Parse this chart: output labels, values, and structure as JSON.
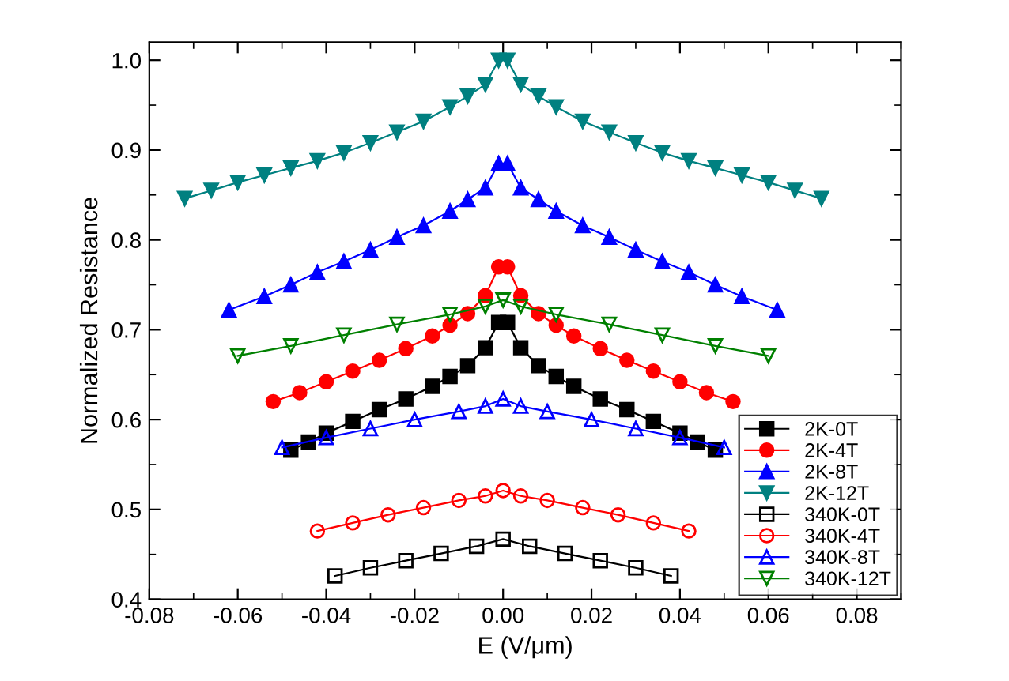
{
  "chart_data": {
    "type": "line",
    "xlabel": "E (V/μm)",
    "ylabel": "Normalized Resistance",
    "xlim": [
      -0.08,
      0.09
    ],
    "xticks": [
      -0.08,
      -0.06,
      -0.04,
      -0.02,
      {
        "value": 0,
        "label": "0.00"
      },
      0.02,
      0.04,
      0.06,
      0.08
    ],
    "ylim": [
      0.4,
      1.02
    ],
    "yticks": [
      0.4,
      0.5,
      0.6,
      0.7,
      0.8,
      0.9,
      {
        "value": 1.0,
        "label": "1.0"
      }
    ],
    "grid": false,
    "legend": "bottom right",
    "line_style": "solid",
    "series": [
      {
        "name": "2K-0T",
        "color": "#000000",
        "marker": "square",
        "x": [
          -0.048,
          -0.044,
          -0.04,
          -0.034,
          -0.028,
          -0.022,
          -0.016,
          -0.012,
          -0.008,
          -0.004,
          -0.001,
          0.001,
          0.004,
          0.008,
          0.012,
          0.016,
          0.022,
          0.028,
          0.034,
          0.04,
          0.044,
          0.048
        ],
        "values": [
          0.566,
          0.575,
          0.585,
          0.598,
          0.611,
          0.623,
          0.637,
          0.648,
          0.66,
          0.68,
          0.708,
          0.708,
          0.68,
          0.66,
          0.648,
          0.637,
          0.623,
          0.611,
          0.598,
          0.585,
          0.575,
          0.566
        ]
      },
      {
        "name": "2K-4T",
        "color": "#ff0000",
        "marker": "circle",
        "x": [
          -0.052,
          -0.046,
          -0.04,
          -0.034,
          -0.028,
          -0.022,
          -0.016,
          -0.012,
          -0.008,
          -0.004,
          -0.001,
          0.001,
          0.004,
          0.008,
          0.012,
          0.016,
          0.022,
          0.028,
          0.034,
          0.04,
          0.046,
          0.052
        ],
        "values": [
          0.62,
          0.63,
          0.642,
          0.654,
          0.666,
          0.679,
          0.693,
          0.705,
          0.718,
          0.738,
          0.77,
          0.77,
          0.738,
          0.718,
          0.705,
          0.693,
          0.679,
          0.666,
          0.654,
          0.642,
          0.63,
          0.62
        ]
      },
      {
        "name": "2K-8T",
        "color": "#0000ff",
        "marker": "triangle",
        "x": [
          -0.062,
          -0.054,
          -0.048,
          -0.042,
          -0.036,
          -0.03,
          -0.024,
          -0.018,
          -0.012,
          -0.008,
          -0.004,
          -0.001,
          0.001,
          0.004,
          0.008,
          0.012,
          0.018,
          0.024,
          0.03,
          0.036,
          0.042,
          0.048,
          0.054,
          0.062
        ],
        "values": [
          0.722,
          0.737,
          0.75,
          0.764,
          0.776,
          0.789,
          0.803,
          0.816,
          0.832,
          0.845,
          0.858,
          0.885,
          0.885,
          0.858,
          0.845,
          0.832,
          0.816,
          0.803,
          0.789,
          0.776,
          0.764,
          0.75,
          0.737,
          0.722
        ]
      },
      {
        "name": "2K-12T",
        "color": "#008080",
        "marker": "triangle_down",
        "x": [
          -0.072,
          -0.066,
          -0.06,
          -0.054,
          -0.048,
          -0.042,
          -0.036,
          -0.03,
          -0.024,
          -0.018,
          -0.012,
          -0.008,
          -0.004,
          -0.001,
          0.001,
          0.004,
          0.008,
          0.012,
          0.018,
          0.024,
          0.03,
          0.036,
          0.042,
          0.048,
          0.054,
          0.06,
          0.066,
          0.072
        ],
        "values": [
          0.846,
          0.855,
          0.864,
          0.872,
          0.88,
          0.888,
          0.897,
          0.908,
          0.92,
          0.932,
          0.948,
          0.96,
          0.973,
          1.0,
          1.0,
          0.973,
          0.96,
          0.948,
          0.932,
          0.92,
          0.908,
          0.897,
          0.888,
          0.88,
          0.872,
          0.864,
          0.855,
          0.846
        ]
      },
      {
        "name": "340K-0T",
        "color": "#000000",
        "marker": "square_open",
        "x": [
          -0.038,
          -0.03,
          -0.022,
          -0.014,
          -0.006,
          0,
          0.006,
          0.014,
          0.022,
          0.03,
          0.038
        ],
        "values": [
          0.426,
          0.435,
          0.443,
          0.451,
          0.459,
          0.467,
          0.459,
          0.451,
          0.443,
          0.435,
          0.426
        ]
      },
      {
        "name": "340K-4T",
        "color": "#ff0000",
        "marker": "circle_open",
        "x": [
          -0.042,
          -0.034,
          -0.026,
          -0.018,
          -0.01,
          -0.004,
          0,
          0.004,
          0.01,
          0.018,
          0.026,
          0.034,
          0.042
        ],
        "values": [
          0.476,
          0.485,
          0.494,
          0.502,
          0.51,
          0.515,
          0.521,
          0.515,
          0.51,
          0.502,
          0.494,
          0.485,
          0.476
        ]
      },
      {
        "name": "340K-8T",
        "color": "#0000ff",
        "marker": "triangle_open",
        "x": [
          -0.05,
          -0.04,
          -0.03,
          -0.02,
          -0.01,
          -0.004,
          0,
          0.004,
          0.01,
          0.02,
          0.03,
          0.04,
          0.05
        ],
        "values": [
          0.569,
          0.58,
          0.59,
          0.6,
          0.609,
          0.615,
          0.623,
          0.615,
          0.609,
          0.6,
          0.59,
          0.58,
          0.569
        ]
      },
      {
        "name": "340K-12T",
        "color": "#008000",
        "marker": "triangle_down_open",
        "x": [
          -0.06,
          -0.048,
          -0.036,
          -0.024,
          -0.012,
          -0.004,
          0,
          0.004,
          0.012,
          0.024,
          0.036,
          0.048,
          0.06
        ],
        "values": [
          0.671,
          0.682,
          0.694,
          0.706,
          0.717,
          0.726,
          0.733,
          0.726,
          0.717,
          0.706,
          0.694,
          0.682,
          0.671
        ]
      }
    ]
  }
}
